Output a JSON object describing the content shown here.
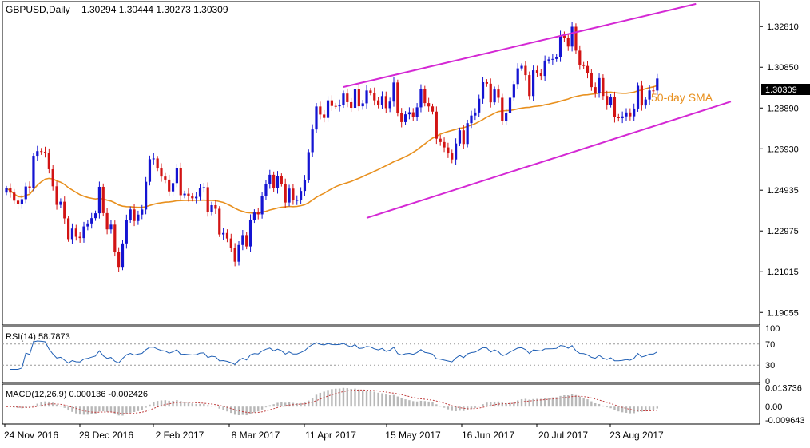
{
  "header": {
    "symbol": "GBPUSD,Daily",
    "ohlc": "1.30294 1.30444 1.30273 1.30309"
  },
  "colors": {
    "background": "#ffffff",
    "axis": "#000000",
    "bull": "#1414d2",
    "bear": "#d21414",
    "sma": "#e8901e",
    "channel": "#d428d4",
    "rsi": "#1e5eb4",
    "macd": "#c04040",
    "histogram": "#b8b8b8",
    "price_tag_bg": "#000000",
    "price_tag_fg": "#ffffff"
  },
  "chart_data": {
    "type": "candlestick",
    "symbol": "GBPUSD",
    "timeframe": "Daily",
    "last_price": "1.30309",
    "price_axis": {
      "ylim": [
        1.1845,
        1.3401
      ],
      "ticks": [
        "1.32810",
        "1.30850",
        "1.28890",
        "1.26930",
        "1.24935",
        "1.22975",
        "1.21015",
        "1.19055"
      ]
    },
    "x_axis_labels": [
      "24 Nov 2016",
      "29 Dec 2016",
      "2 Feb 2017",
      "8 Mar 2017",
      "11 Apr 2017",
      "15 May 2017",
      "16 Jun 2017",
      "20 Jul 2017",
      "23 Aug 2017"
    ],
    "sma_label": "50-day SMA",
    "close_anchors": [
      [
        0,
        1.248
      ],
      [
        4,
        1.243
      ],
      [
        7,
        1.262
      ],
      [
        9,
        1.272
      ],
      [
        13,
        1.245
      ],
      [
        17,
        1.226
      ],
      [
        21,
        1.232
      ],
      [
        24,
        1.246
      ],
      [
        27,
        1.228
      ],
      [
        29,
        1.214
      ],
      [
        32,
        1.242
      ],
      [
        34,
        1.232
      ],
      [
        36,
        1.255
      ],
      [
        38,
        1.266
      ],
      [
        41,
        1.251
      ],
      [
        44,
        1.255
      ],
      [
        47,
        1.244
      ],
      [
        50,
        1.25
      ],
      [
        53,
        1.241
      ],
      [
        56,
        1.228
      ],
      [
        59,
        1.218
      ],
      [
        62,
        1.228
      ],
      [
        65,
        1.241
      ],
      [
        68,
        1.256
      ],
      [
        71,
        1.251
      ],
      [
        74,
        1.244
      ],
      [
        77,
        1.252
      ],
      [
        79,
        1.283
      ],
      [
        82,
        1.288
      ],
      [
        85,
        1.291
      ],
      [
        88,
        1.293
      ],
      [
        91,
        1.292
      ],
      [
        94,
        1.296
      ],
      [
        97,
        1.29
      ],
      [
        100,
        1.296
      ],
      [
        102,
        1.283
      ],
      [
        105,
        1.287
      ],
      [
        108,
        1.296
      ],
      [
        111,
        1.277
      ],
      [
        114,
        1.265
      ],
      [
        117,
        1.274
      ],
      [
        120,
        1.283
      ],
      [
        123,
        1.3
      ],
      [
        126,
        1.295
      ],
      [
        129,
        1.284
      ],
      [
        132,
        1.31
      ],
      [
        135,
        1.3
      ],
      [
        138,
        1.308
      ],
      [
        141,
        1.313
      ],
      [
        144,
        1.323
      ],
      [
        146,
        1.323
      ],
      [
        148,
        1.312
      ],
      [
        151,
        1.3
      ],
      [
        154,
        1.297
      ],
      [
        157,
        1.286
      ],
      [
        160,
        1.284
      ],
      [
        163,
        1.294
      ],
      [
        166,
        1.294
      ],
      [
        168,
        1.303
      ]
    ],
    "indicators": {
      "rsi": {
        "label": "RSI(14) 58.7873",
        "levels": [
          "100",
          "70",
          "30",
          "0"
        ],
        "range": [
          0,
          100
        ],
        "overbought": 70,
        "oversold": 30
      },
      "macd": {
        "label": "MACD(12,26,9) 0.000136 -0.002426",
        "levels": [
          "0.013736",
          "0.00",
          "-0.009643"
        ],
        "range": [
          -0.0115,
          0.0152
        ]
      }
    },
    "trend_channel": {
      "upper": [
        [
          87,
          1.299
        ],
        [
          178,
          1.339
        ]
      ],
      "lower": [
        [
          93,
          1.236
        ],
        [
          187,
          1.292
        ]
      ]
    }
  }
}
